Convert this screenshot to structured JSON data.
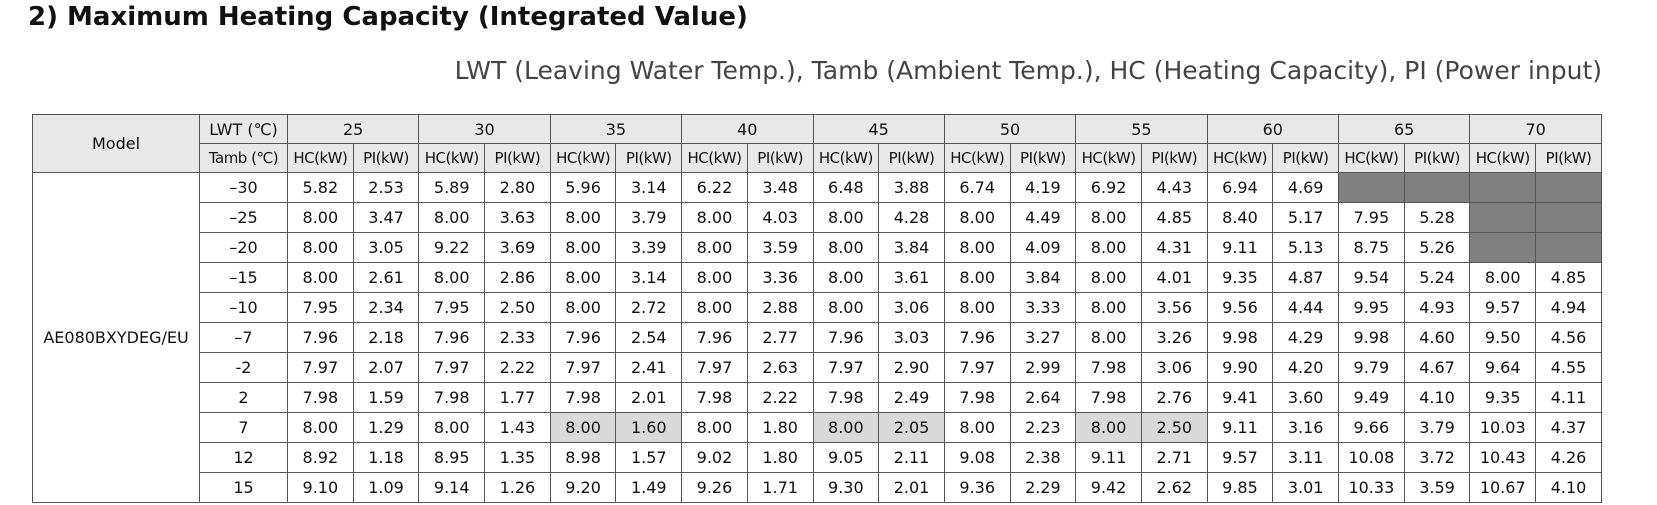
{
  "title": "2) Maximum Heating Capacity (Integrated Value)",
  "subtitle": "LWT (Leaving Water Temp.), Tamb (Ambient Temp.), HC (Heating Capacity), PI (Power input)",
  "table": {
    "model_header": "Model",
    "lwt_header": "LWT (℃)",
    "tamb_header": "Tamb (℃)",
    "lwt": [
      "25",
      "30",
      "35",
      "40",
      "45",
      "50",
      "55",
      "60",
      "65",
      "70"
    ],
    "sub_headers": [
      "HC(kW)",
      "PI(kW)"
    ],
    "model": "AE080BXYDEG/EU",
    "highlighted_cells": [
      [
        8,
        4
      ],
      [
        8,
        5
      ],
      [
        8,
        8
      ],
      [
        8,
        9
      ],
      [
        8,
        12
      ],
      [
        8,
        13
      ]
    ],
    "rows": [
      {
        "tamb": "–30",
        "cells": [
          "5.82",
          "2.53",
          "5.89",
          "2.80",
          "5.96",
          "3.14",
          "6.22",
          "3.48",
          "6.48",
          "3.88",
          "6.74",
          "4.19",
          "6.92",
          "4.43",
          "6.94",
          "4.69",
          null,
          null,
          null,
          null
        ]
      },
      {
        "tamb": "–25",
        "cells": [
          "8.00",
          "3.47",
          "8.00",
          "3.63",
          "8.00",
          "3.79",
          "8.00",
          "4.03",
          "8.00",
          "4.28",
          "8.00",
          "4.49",
          "8.00",
          "4.85",
          "8.40",
          "5.17",
          "7.95",
          "5.28",
          null,
          null
        ]
      },
      {
        "tamb": "–20",
        "cells": [
          "8.00",
          "3.05",
          "9.22",
          "3.69",
          "8.00",
          "3.39",
          "8.00",
          "3.59",
          "8.00",
          "3.84",
          "8.00",
          "4.09",
          "8.00",
          "4.31",
          "9.11",
          "5.13",
          "8.75",
          "5.26",
          null,
          null
        ]
      },
      {
        "tamb": "–15",
        "cells": [
          "8.00",
          "2.61",
          "8.00",
          "2.86",
          "8.00",
          "3.14",
          "8.00",
          "3.36",
          "8.00",
          "3.61",
          "8.00",
          "3.84",
          "8.00",
          "4.01",
          "9.35",
          "4.87",
          "9.54",
          "5.24",
          "8.00",
          "4.85"
        ]
      },
      {
        "tamb": "–10",
        "cells": [
          "7.95",
          "2.34",
          "7.95",
          "2.50",
          "8.00",
          "2.72",
          "8.00",
          "2.88",
          "8.00",
          "3.06",
          "8.00",
          "3.33",
          "8.00",
          "3.56",
          "9.56",
          "4.44",
          "9.95",
          "4.93",
          "9.57",
          "4.94"
        ]
      },
      {
        "tamb": "–7",
        "cells": [
          "7.96",
          "2.18",
          "7.96",
          "2.33",
          "7.96",
          "2.54",
          "7.96",
          "2.77",
          "7.96",
          "3.03",
          "7.96",
          "3.27",
          "8.00",
          "3.26",
          "9.98",
          "4.29",
          "9.98",
          "4.60",
          "9.50",
          "4.56"
        ]
      },
      {
        "tamb": "-2",
        "cells": [
          "7.97",
          "2.07",
          "7.97",
          "2.22",
          "7.97",
          "2.41",
          "7.97",
          "2.63",
          "7.97",
          "2.90",
          "7.97",
          "2.99",
          "7.98",
          "3.06",
          "9.90",
          "4.20",
          "9.79",
          "4.67",
          "9.64",
          "4.55"
        ]
      },
      {
        "tamb": "2",
        "cells": [
          "7.98",
          "1.59",
          "7.98",
          "1.77",
          "7.98",
          "2.01",
          "7.98",
          "2.22",
          "7.98",
          "2.49",
          "7.98",
          "2.64",
          "7.98",
          "2.76",
          "9.41",
          "3.60",
          "9.49",
          "4.10",
          "9.35",
          "4.11"
        ]
      },
      {
        "tamb": "7",
        "cells": [
          "8.00",
          "1.29",
          "8.00",
          "1.43",
          "8.00",
          "1.60",
          "8.00",
          "1.80",
          "8.00",
          "2.05",
          "8.00",
          "2.23",
          "8.00",
          "2.50",
          "9.11",
          "3.16",
          "9.66",
          "3.79",
          "10.03",
          "4.37"
        ]
      },
      {
        "tamb": "12",
        "cells": [
          "8.92",
          "1.18",
          "8.95",
          "1.35",
          "8.98",
          "1.57",
          "9.02",
          "1.80",
          "9.05",
          "2.11",
          "9.08",
          "2.38",
          "9.11",
          "2.71",
          "9.57",
          "3.11",
          "10.08",
          "3.72",
          "10.43",
          "4.26"
        ]
      },
      {
        "tamb": "15",
        "cells": [
          "9.10",
          "1.09",
          "9.14",
          "1.26",
          "9.20",
          "1.49",
          "9.26",
          "1.71",
          "9.30",
          "2.01",
          "9.36",
          "2.29",
          "9.42",
          "2.62",
          "9.85",
          "3.01",
          "10.33",
          "3.59",
          "10.67",
          "4.10"
        ]
      }
    ]
  }
}
